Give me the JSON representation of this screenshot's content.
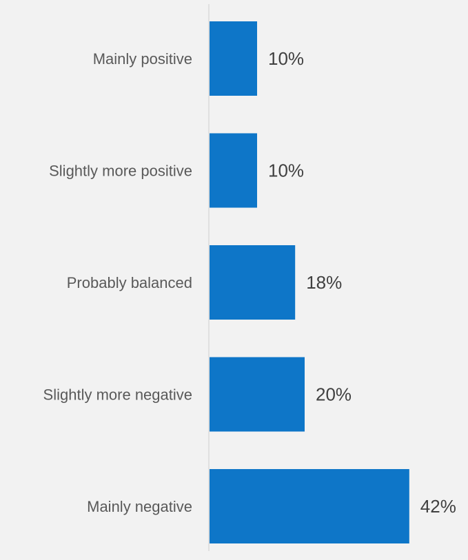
{
  "chart_data": {
    "type": "bar",
    "orientation": "horizontal",
    "categories": [
      "Mainly positive",
      "Slightly more positive",
      "Probably balanced",
      "Slightly more negative",
      "Mainly negative"
    ],
    "values": [
      10,
      10,
      18,
      20,
      42
    ],
    "value_labels": [
      "10%",
      "10%",
      "18%",
      "20%",
      "42%"
    ],
    "value_unit": "%",
    "xlim": [
      0,
      46
    ],
    "title": "",
    "xlabel": "",
    "ylabel": "",
    "grid": false,
    "legend": "none",
    "bar_color": "#0e76c8",
    "axis_color": "#d9d9d9",
    "background": "#f2f2f2"
  }
}
